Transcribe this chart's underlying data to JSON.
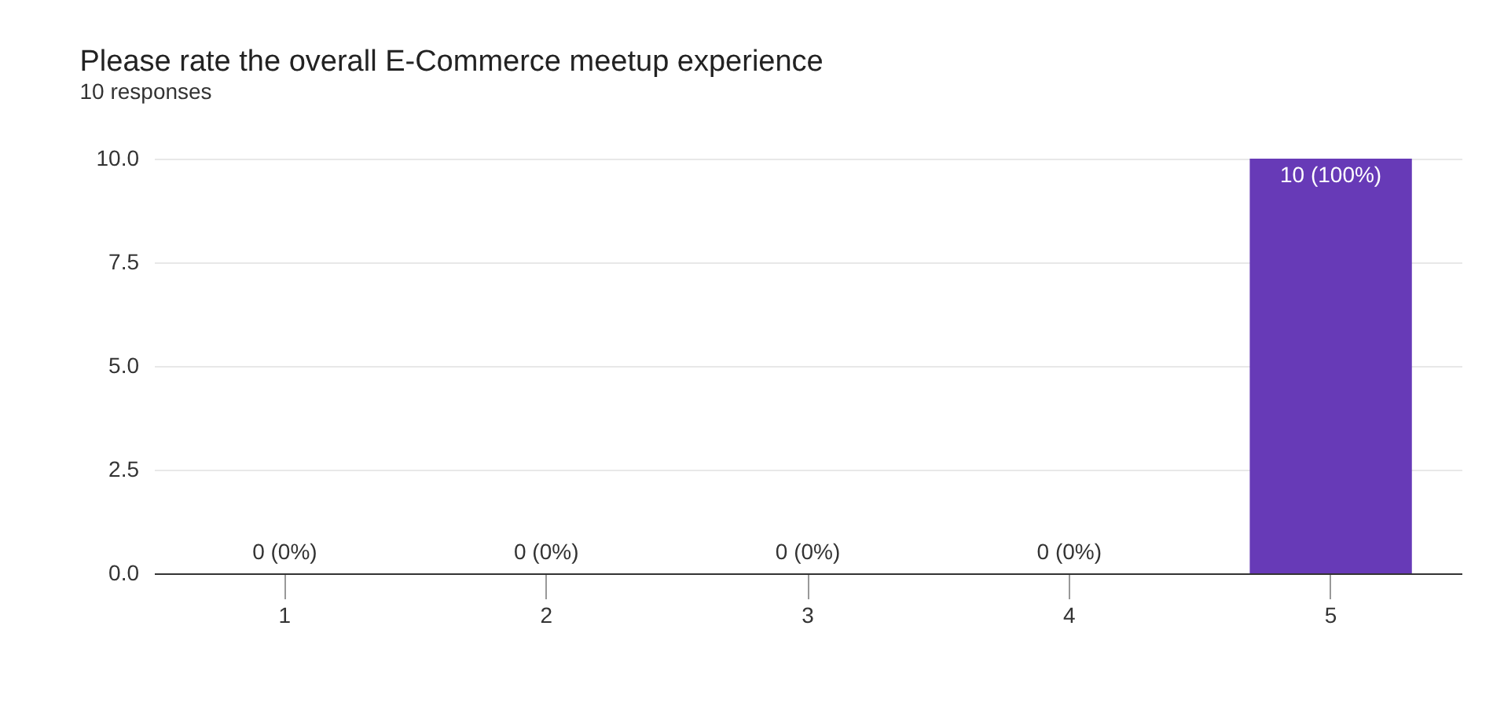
{
  "chart_data": {
    "type": "bar",
    "title": "Please rate the overall E-Commerce meetup experience",
    "subtitle": "10 responses",
    "categories": [
      "1",
      "2",
      "3",
      "4",
      "5"
    ],
    "values": [
      0,
      0,
      0,
      0,
      10
    ],
    "color": "#673ab7",
    "value_labels": [
      "0 (0%)",
      "0 (0%)",
      "0 (0%)",
      "0 (0%)",
      "10 (100%)"
    ],
    "ylim": [
      0,
      10
    ],
    "yticks": [
      {
        "value": 0,
        "label": "0.0"
      },
      {
        "value": 2.5,
        "label": "2.5"
      },
      {
        "value": 5,
        "label": "5.0"
      },
      {
        "value": 7.5,
        "label": "7.5"
      },
      {
        "value": 10,
        "label": "10.0"
      }
    ],
    "grid": "y"
  }
}
